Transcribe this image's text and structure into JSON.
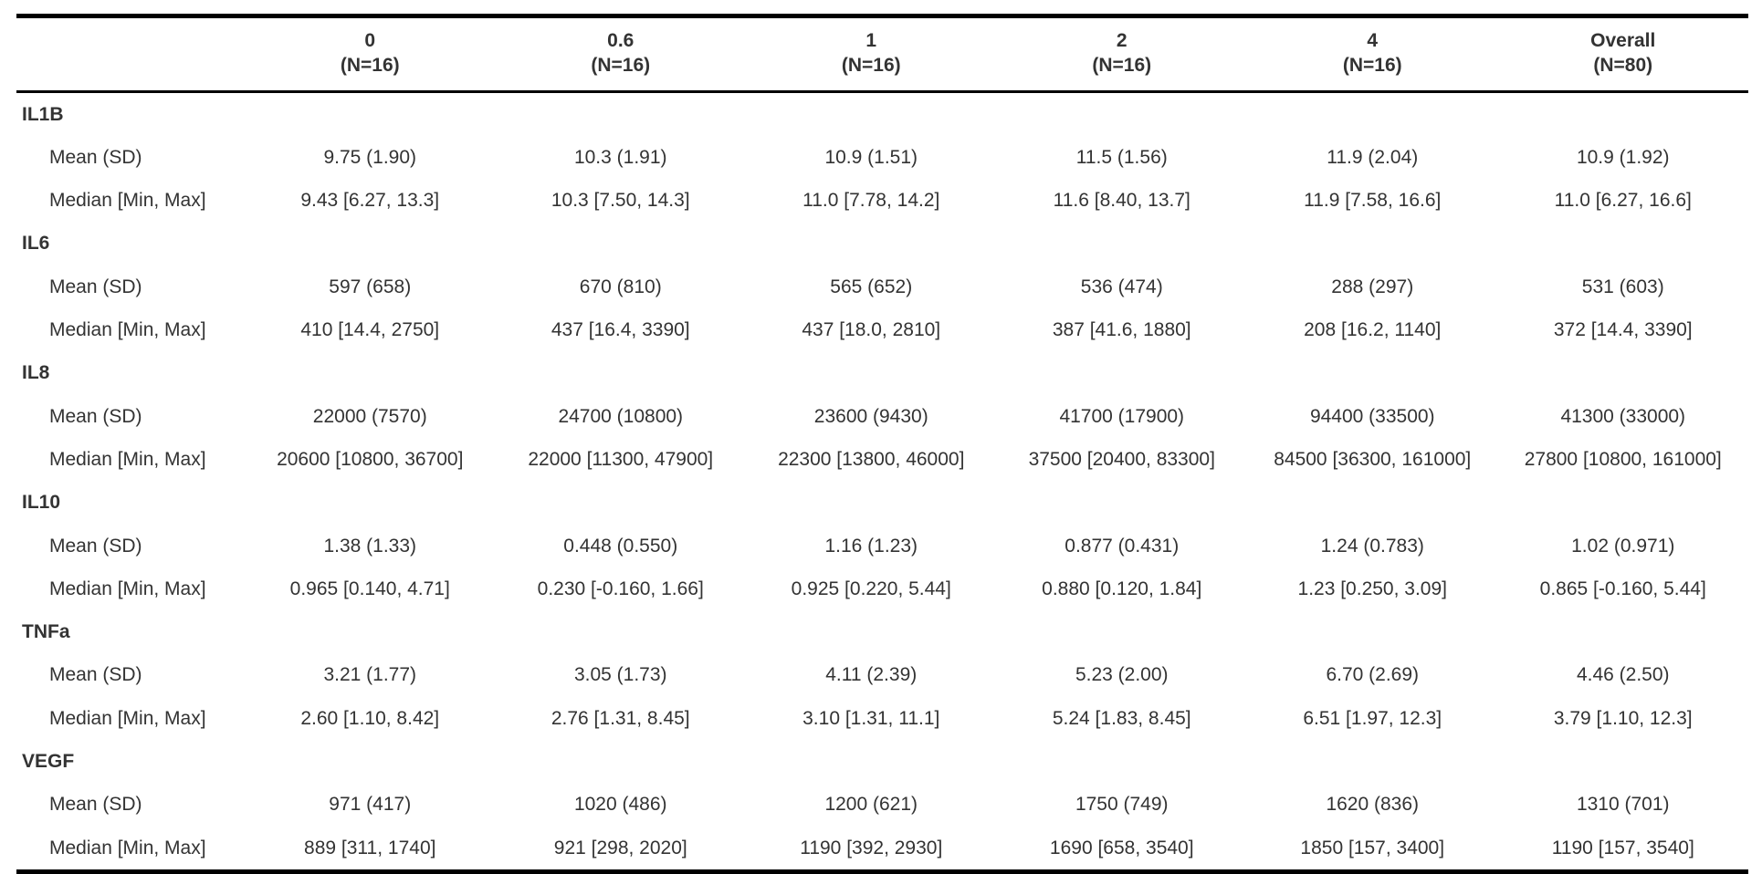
{
  "table": {
    "columns": [
      {
        "label": "0",
        "n": "(N=16)"
      },
      {
        "label": "0.6",
        "n": "(N=16)"
      },
      {
        "label": "1",
        "n": "(N=16)"
      },
      {
        "label": "2",
        "n": "(N=16)"
      },
      {
        "label": "4",
        "n": "(N=16)"
      },
      {
        "label": "Overall",
        "n": "(N=80)"
      }
    ],
    "stat_labels": {
      "mean_sd": "Mean (SD)",
      "median_min_max": "Median [Min, Max]"
    },
    "sections": [
      {
        "variable": "IL1B",
        "mean_sd": [
          "9.75 (1.90)",
          "10.3 (1.91)",
          "10.9 (1.51)",
          "11.5 (1.56)",
          "11.9 (2.04)",
          "10.9 (1.92)"
        ],
        "median_min_max": [
          "9.43 [6.27, 13.3]",
          "10.3 [7.50, 14.3]",
          "11.0 [7.78, 14.2]",
          "11.6 [8.40, 13.7]",
          "11.9 [7.58, 16.6]",
          "11.0 [6.27, 16.6]"
        ]
      },
      {
        "variable": "IL6",
        "mean_sd": [
          "597 (658)",
          "670 (810)",
          "565 (652)",
          "536 (474)",
          "288 (297)",
          "531 (603)"
        ],
        "median_min_max": [
          "410 [14.4, 2750]",
          "437 [16.4, 3390]",
          "437 [18.0, 2810]",
          "387 [41.6, 1880]",
          "208 [16.2, 1140]",
          "372 [14.4, 3390]"
        ]
      },
      {
        "variable": "IL8",
        "mean_sd": [
          "22000 (7570)",
          "24700 (10800)",
          "23600 (9430)",
          "41700 (17900)",
          "94400 (33500)",
          "41300 (33000)"
        ],
        "median_min_max": [
          "20600 [10800, 36700]",
          "22000 [11300, 47900]",
          "22300 [13800, 46000]",
          "37500 [20400, 83300]",
          "84500 [36300, 161000]",
          "27800 [10800, 161000]"
        ]
      },
      {
        "variable": "IL10",
        "mean_sd": [
          "1.38 (1.33)",
          "0.448 (0.550)",
          "1.16 (1.23)",
          "0.877 (0.431)",
          "1.24 (0.783)",
          "1.02 (0.971)"
        ],
        "median_min_max": [
          "0.965 [0.140, 4.71]",
          "0.230 [-0.160, 1.66]",
          "0.925 [0.220, 5.44]",
          "0.880 [0.120, 1.84]",
          "1.23 [0.250, 3.09]",
          "0.865 [-0.160, 5.44]"
        ]
      },
      {
        "variable": "TNFa",
        "mean_sd": [
          "3.21 (1.77)",
          "3.05 (1.73)",
          "4.11 (2.39)",
          "5.23 (2.00)",
          "6.70 (2.69)",
          "4.46 (2.50)"
        ],
        "median_min_max": [
          "2.60 [1.10, 8.42]",
          "2.76 [1.31, 8.45]",
          "3.10 [1.31, 11.1]",
          "5.24 [1.83, 8.45]",
          "6.51 [1.97, 12.3]",
          "3.79 [1.10, 12.3]"
        ]
      },
      {
        "variable": "VEGF",
        "mean_sd": [
          "971 (417)",
          "1020 (486)",
          "1200 (621)",
          "1750 (749)",
          "1620 (836)",
          "1310 (701)"
        ],
        "median_min_max": [
          "889 [311, 1740]",
          "921 [298, 2020]",
          "1190 [392, 2930]",
          "1690 [658, 3540]",
          "1850 [157, 3400]",
          "1190 [157, 3540]"
        ]
      }
    ],
    "colors": {
      "text": "#333333",
      "rule": "#000000",
      "background": "#ffffff"
    }
  }
}
